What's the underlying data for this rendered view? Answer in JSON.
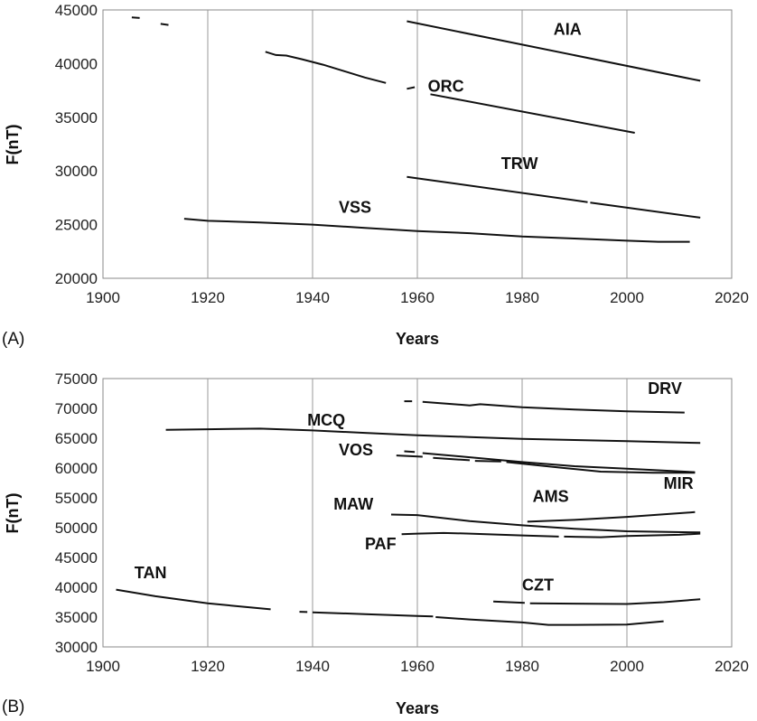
{
  "chart_data": [
    {
      "type": "line",
      "panel_label": "(A)",
      "xlabel": "Years",
      "ylabel": "F(nT)",
      "xlim": [
        1900,
        2020
      ],
      "ylim": [
        20000,
        45000
      ],
      "x_ticks": [
        "1900",
        "1920",
        "1940",
        "1960",
        "1980",
        "2000",
        "2020"
      ],
      "y_ticks": [
        "20000",
        "25000",
        "30000",
        "35000",
        "40000",
        "45000"
      ],
      "grid": "vertical",
      "legend": "none",
      "series": [
        {
          "name": "AIA",
          "label_at": [
            1986,
            42700
          ],
          "segments": [
            [
              [
                1905.5,
                44300
              ],
              [
                1907,
                44250
              ]
            ],
            [
              [
                1911,
                43700
              ],
              [
                1912.5,
                43600
              ]
            ],
            [
              [
                1958,
                43950
              ],
              [
                2014,
                38400
              ]
            ]
          ]
        },
        {
          "name": "ORC",
          "label_at": [
            1962,
            37400
          ],
          "segments": [
            [
              [
                1931,
                41100
              ],
              [
                1933,
                40800
              ],
              [
                1935,
                40750
              ],
              [
                1938,
                40400
              ],
              [
                1942,
                39900
              ],
              [
                1946,
                39300
              ],
              [
                1950,
                38700
              ],
              [
                1954,
                38200
              ]
            ],
            [
              [
                1958,
                37650
              ],
              [
                1959.5,
                37800
              ]
            ],
            [
              [
                1962.5,
                37150
              ],
              [
                2001.5,
                33550
              ]
            ]
          ]
        },
        {
          "name": "TRW",
          "label_at": [
            1976,
            30200
          ],
          "segments": [
            [
              [
                1958,
                29450
              ],
              [
                1992.5,
                27100
              ]
            ],
            [
              [
                1993,
                27050
              ],
              [
                2014,
                25650
              ]
            ]
          ]
        },
        {
          "name": "VSS",
          "label_at": [
            1945,
            26100
          ],
          "segments": [
            [
              [
                1915.5,
                25550
              ],
              [
                1920,
                25350
              ],
              [
                1930,
                25200
              ],
              [
                1940,
                25000
              ],
              [
                1950,
                24700
              ],
              [
                1960,
                24400
              ],
              [
                1970,
                24200
              ],
              [
                1980,
                23900
              ],
              [
                1990,
                23700
              ],
              [
                2000,
                23500
              ],
              [
                2006,
                23400
              ],
              [
                2012,
                23400
              ]
            ]
          ]
        }
      ]
    },
    {
      "type": "line",
      "panel_label": "(B)",
      "xlabel": "Years",
      "ylabel": "F(nT)",
      "xlim": [
        1900,
        2020
      ],
      "ylim": [
        30000,
        75000
      ],
      "x_ticks": [
        "1900",
        "1920",
        "1940",
        "1960",
        "1980",
        "2000",
        "2020"
      ],
      "y_ticks": [
        "30000",
        "35000",
        "40000",
        "45000",
        "50000",
        "55000",
        "60000",
        "65000",
        "70000",
        "75000"
      ],
      "grid": "vertical",
      "legend": "none",
      "series": [
        {
          "name": "DRV",
          "label_at": [
            2004,
            72400
          ],
          "segments": [
            [
              [
                1957.5,
                71200
              ],
              [
                1959,
                71200
              ]
            ],
            [
              [
                1961,
                71100
              ],
              [
                1970,
                70500
              ],
              [
                1972,
                70700
              ],
              [
                1980,
                70200
              ],
              [
                1990,
                69800
              ],
              [
                2000,
                69500
              ],
              [
                2011,
                69300
              ]
            ]
          ]
        },
        {
          "name": "MCQ",
          "label_at": [
            1939,
            67100
          ],
          "segments": [
            [
              [
                1912,
                66400
              ],
              [
                1920,
                66500
              ],
              [
                1930,
                66600
              ],
              [
                1940,
                66300
              ],
              [
                1950,
                65900
              ],
              [
                1960,
                65500
              ],
              [
                1970,
                65200
              ],
              [
                1980,
                64900
              ],
              [
                1990,
                64700
              ],
              [
                2000,
                64500
              ],
              [
                2014,
                64200
              ]
            ]
          ]
        },
        {
          "name": "VOS",
          "label_at": [
            1945,
            62100
          ],
          "segments": [
            [
              [
                1957.5,
                62800
              ],
              [
                1959.5,
                62700
              ]
            ],
            [
              [
                1961,
                62500
              ],
              [
                1970,
                61800
              ],
              [
                1980,
                61000
              ],
              [
                1990,
                60300
              ],
              [
                2000,
                59900
              ],
              [
                2013,
                59300
              ]
            ]
          ]
        },
        {
          "name": "MIR",
          "label_at": [
            2007,
            56500
          ],
          "segments": [
            [
              [
                1956,
                62100
              ],
              [
                1961,
                61900
              ]
            ],
            [
              [
                1963,
                61700
              ],
              [
                1970,
                61300
              ]
            ],
            [
              [
                1971,
                61200
              ],
              [
                1976,
                61100
              ]
            ],
            [
              [
                1977,
                61000
              ],
              [
                1988,
                60000
              ],
              [
                1995,
                59400
              ],
              [
                2005,
                59200
              ],
              [
                2013,
                59200
              ]
            ]
          ]
        },
        {
          "name": "MAW",
          "label_at": [
            1944,
            53000
          ],
          "segments": [
            [
              [
                1955,
                52200
              ],
              [
                1960,
                52100
              ],
              [
                1970,
                51100
              ],
              [
                1980,
                50400
              ],
              [
                1990,
                49800
              ],
              [
                2000,
                49400
              ],
              [
                2014,
                49200
              ]
            ]
          ]
        },
        {
          "name": "AMS",
          "label_at": [
            1982,
            54300
          ],
          "segments": [
            [
              [
                1981,
                51000
              ],
              [
                1990,
                51300
              ],
              [
                2000,
                51800
              ],
              [
                2013,
                52600
              ]
            ]
          ]
        },
        {
          "name": "PAF",
          "label_at": [
            1950,
            46400
          ],
          "segments": [
            [
              [
                1957,
                48900
              ],
              [
                1960,
                49000
              ],
              [
                1965,
                49100
              ],
              [
                1970,
                49000
              ],
              [
                1980,
                48700
              ],
              [
                1987,
                48500
              ]
            ],
            [
              [
                1988,
                48500
              ],
              [
                1995,
                48400
              ],
              [
                2000,
                48600
              ],
              [
                2010,
                48800
              ],
              [
                2014,
                49000
              ]
            ]
          ]
        },
        {
          "name": "CZT",
          "label_at": [
            1980,
            39500
          ],
          "segments": [
            [
              [
                1974.5,
                37600
              ],
              [
                1980.5,
                37400
              ]
            ],
            [
              [
                1981.5,
                37300
              ],
              [
                1990,
                37250
              ],
              [
                2000,
                37200
              ],
              [
                2007,
                37500
              ],
              [
                2014,
                38000
              ]
            ]
          ]
        },
        {
          "name": "TAN",
          "label_at": [
            1906,
            41500
          ],
          "segments": [
            [
              [
                1902.5,
                39600
              ],
              [
                1910,
                38500
              ],
              [
                1920,
                37300
              ],
              [
                1932,
                36300
              ]
            ],
            [
              [
                1937.5,
                35900
              ],
              [
                1939,
                35850
              ]
            ],
            [
              [
                1940,
                35800
              ],
              [
                1950,
                35500
              ],
              [
                1960,
                35200
              ],
              [
                1963,
                35100
              ]
            ],
            [
              [
                1963.5,
                35000
              ],
              [
                1970,
                34600
              ],
              [
                1980,
                34100
              ],
              [
                1985,
                33700
              ],
              [
                1990,
                33700
              ],
              [
                2000,
                33750
              ],
              [
                2007,
                34300
              ]
            ]
          ]
        }
      ]
    }
  ]
}
